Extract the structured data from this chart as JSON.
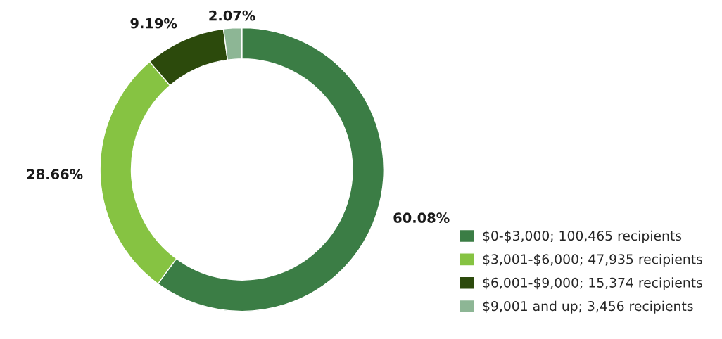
{
  "chart_data": {
    "type": "donut",
    "categories": [
      "$0-$3,000; 100,465 recipients",
      "$3,001-$6,000; 47,935 recipients",
      "$6,001-$9,000; 15,374 recipients",
      "$9,001 and up; 3,456 recipients"
    ],
    "values": [
      60.08,
      28.66,
      9.19,
      2.07
    ],
    "value_labels": [
      "60.08%",
      "28.66%",
      "9.19%",
      "2.07%"
    ],
    "colors": [
      "#3b7d45",
      "#86c342",
      "#2c4a0c",
      "#8db695"
    ],
    "legend": "bottom right"
  }
}
